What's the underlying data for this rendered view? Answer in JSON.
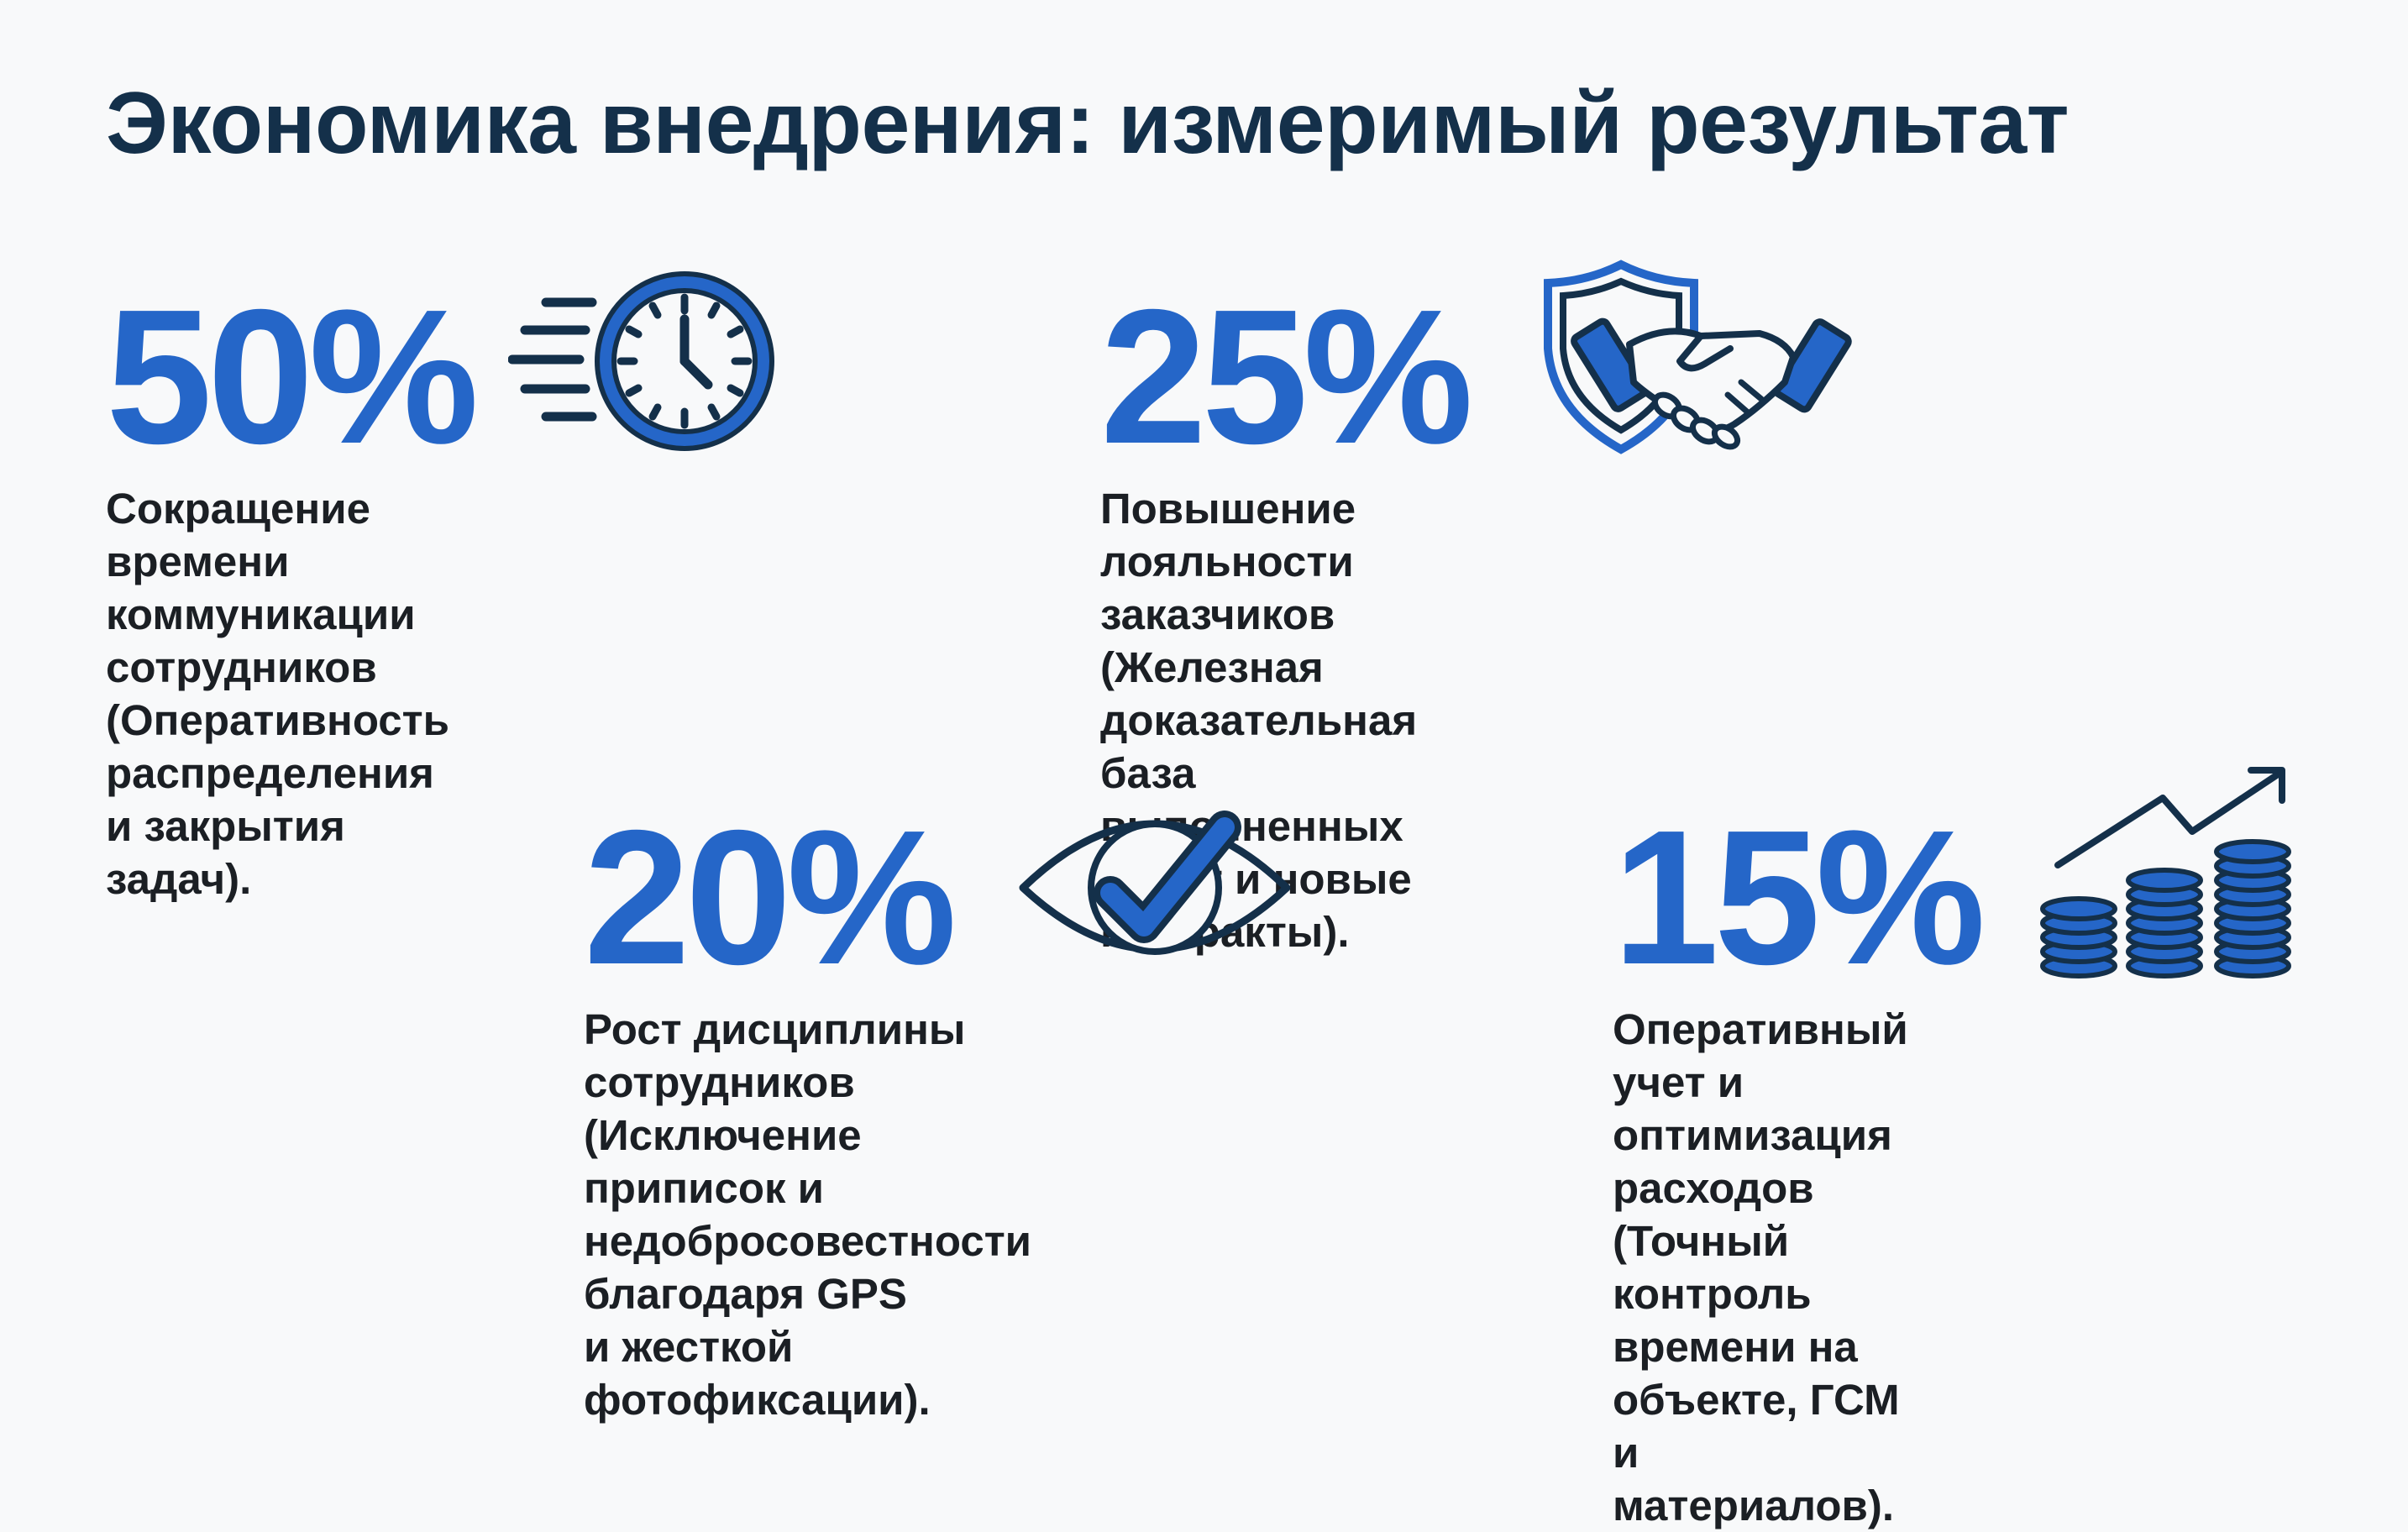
{
  "title": "Экономика внедрения: измеримый результат",
  "metrics": [
    {
      "value": "50%",
      "description": "Сокращение времени\nкоммуникации сотрудников\n(Оперативность распределения\nи закрытия задач).",
      "icon": "fast-clock-icon"
    },
    {
      "value": "25%",
      "description": "Повышение лояльности заказчиков\n(Железная доказательная\nбаза выполненных работ и новые\nконтракты).",
      "icon": "shield-handshake-icon"
    },
    {
      "value": "20%",
      "description": "Рост дисциплины сотрудников\n(Исключение приписок и\nнедобросовестности благодаря GPS\nи жесткой фотофиксации).",
      "icon": "eye-check-icon"
    },
    {
      "value": "15%",
      "description": "Оперативный учет и\nоптимизация расходов\n(Точный контроль времени на\nобъекте, ГСМ и материалов).",
      "icon": "coins-growth-icon"
    }
  ],
  "colors": {
    "accent": "#2566c8",
    "dark": "#14304a",
    "text": "#1b1f24",
    "background": "#f8f9fa"
  }
}
